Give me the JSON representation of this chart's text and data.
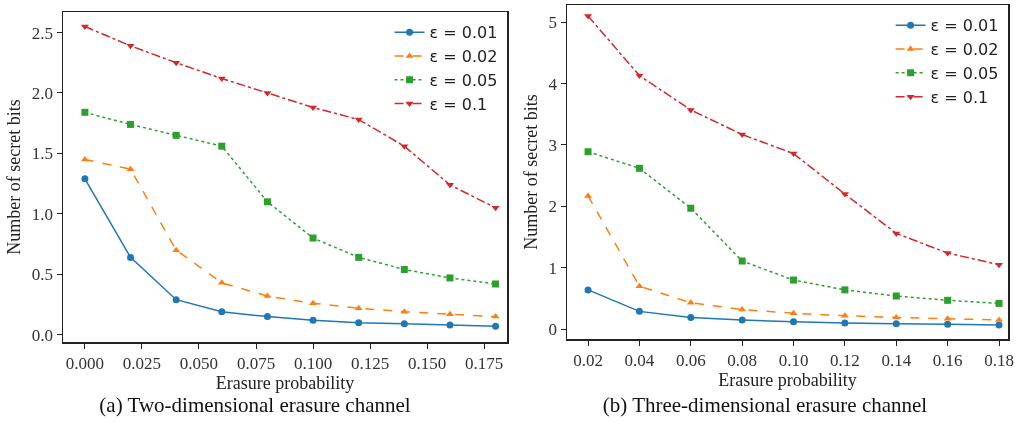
{
  "chart_data": [
    {
      "type": "line",
      "title": "(a) Two-dimensional erasure channel",
      "xlabel": "Erasure probability",
      "ylabel": "Number of secret bits",
      "x": [
        0,
        0.02,
        0.04,
        0.06,
        0.08,
        0.1,
        0.12,
        0.14,
        0.16,
        0.18
      ],
      "series": [
        {
          "name": "ε = 0.01",
          "color": "#1f77b4",
          "marker": "circle",
          "line_style": "solid",
          "values": [
            1.29,
            0.64,
            0.29,
            0.19,
            0.15,
            0.12,
            0.1,
            0.09,
            0.08,
            0.07
          ]
        },
        {
          "name": "ε = 0.02",
          "color": "#ff7f0e",
          "marker": "triangle",
          "line_style": "dashed",
          "values": [
            1.45,
            1.37,
            0.7,
            0.43,
            0.32,
            0.26,
            0.22,
            0.19,
            0.17,
            0.15
          ]
        },
        {
          "name": "ε = 0.05",
          "color": "#2ca02c",
          "marker": "square",
          "line_style": "dotted",
          "values": [
            1.84,
            1.74,
            1.65,
            1.56,
            1.1,
            0.8,
            0.64,
            0.54,
            0.47,
            0.42
          ]
        },
        {
          "name": "ε = 0.1",
          "color": "#d62728",
          "marker": "triangle-down",
          "line_style": "dashdot",
          "values": [
            2.55,
            2.39,
            2.25,
            2.12,
            2.0,
            1.88,
            1.78,
            1.56,
            1.24,
            1.05
          ]
        }
      ],
      "xlim": [
        -0.0096,
        0.185
      ],
      "ylim": [
        -0.06,
        2.67
      ],
      "xticks": [
        {
          "value": 0,
          "label": "0.000"
        },
        {
          "value": 0.025,
          "label": "0.025"
        },
        {
          "value": 0.05,
          "label": "0.050"
        },
        {
          "value": 0.075,
          "label": "0.075"
        },
        {
          "value": 0.1,
          "label": "0.100"
        },
        {
          "value": 0.125,
          "label": "0.125"
        },
        {
          "value": 0.15,
          "label": "0.150"
        },
        {
          "value": 0.175,
          "label": "0.175"
        }
      ],
      "yticks": [
        {
          "value": 0,
          "label": "0.0"
        },
        0.5,
        {
          "value": 1,
          "label": "1.0"
        },
        1.5,
        {
          "value": 2,
          "label": "2.0"
        },
        2.5
      ],
      "grid": false,
      "legend": "top right"
    },
    {
      "type": "line",
      "title": "(b) Three-dimensional erasure channel",
      "xlabel": "Erasure probability",
      "ylabel": "Number of secret bits",
      "x": [
        0.02,
        0.04,
        0.06,
        0.08,
        0.1,
        0.12,
        0.14,
        0.16,
        0.18
      ],
      "series": [
        {
          "name": "ε = 0.01",
          "color": "#1f77b4",
          "marker": "circle",
          "line_style": "solid",
          "values": [
            0.64,
            0.29,
            0.19,
            0.15,
            0.12,
            0.1,
            0.09,
            0.08,
            0.07
          ]
        },
        {
          "name": "ε = 0.02",
          "color": "#ff7f0e",
          "marker": "triangle",
          "line_style": "dashed",
          "values": [
            2.17,
            0.7,
            0.43,
            0.32,
            0.26,
            0.22,
            0.19,
            0.17,
            0.15
          ]
        },
        {
          "name": "ε = 0.05",
          "color": "#2ca02c",
          "marker": "square",
          "line_style": "dotted",
          "values": [
            2.89,
            2.62,
            1.97,
            1.11,
            0.8,
            0.64,
            0.54,
            0.47,
            0.42
          ]
        },
        {
          "name": "ε = 0.1",
          "color": "#d62728",
          "marker": "triangle-down",
          "line_style": "dashdot",
          "values": [
            5.1,
            4.13,
            3.57,
            3.17,
            2.86,
            2.2,
            1.56,
            1.24,
            1.05
          ]
        }
      ],
      "xlim": [
        0.0118,
        0.1835
      ],
      "ylim": [
        -0.16,
        5.28
      ],
      "xticks": [
        0.02,
        0.04,
        0.06,
        0.08,
        {
          "value": 0.1,
          "label": "0.10"
        },
        0.12,
        0.14,
        0.16,
        0.18
      ],
      "yticks": [
        0,
        1,
        2,
        3,
        4,
        5
      ],
      "grid": false,
      "legend": "top right"
    }
  ]
}
